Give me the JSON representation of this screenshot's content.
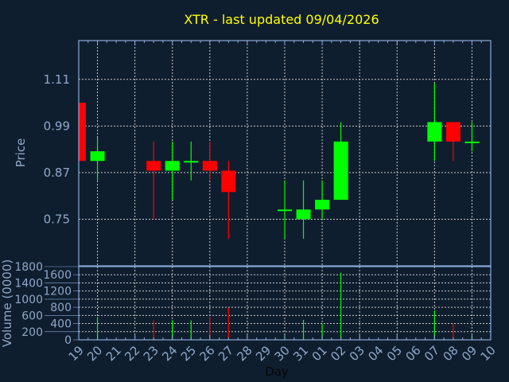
{
  "chart_data": {
    "type": "candlestick",
    "title": "XTR - last updated 09/04/2026",
    "xlabel": "Day",
    "price_panel": {
      "ylabel": "Price",
      "yticks": [
        1.11,
        0.99,
        0.87,
        0.75
      ],
      "ylim": [
        0.63,
        1.21
      ],
      "grid": true
    },
    "volume_panel": {
      "ylabel": "Volume (0000)",
      "yticks": [
        0,
        200,
        400,
        600,
        800,
        1000,
        1200,
        1400,
        1600,
        1800
      ],
      "ylim": [
        0,
        1800
      ],
      "grid": true
    },
    "x_tick_labels": [
      "19",
      "20",
      "21",
      "22",
      "23",
      "24",
      "25",
      "26",
      "27",
      "28",
      "29",
      "30",
      "31",
      "01",
      "02",
      "03",
      "04",
      "05",
      "06",
      "07",
      "08",
      "09",
      "10"
    ],
    "candles": [
      {
        "day": "19",
        "open": 1.05,
        "high": 1.05,
        "low": 0.9,
        "close": 0.9,
        "volume": null
      },
      {
        "day": "20",
        "open": 0.9,
        "high": 0.96,
        "low": 0.85,
        "close": 0.925,
        "volume": 560
      },
      {
        "day": "23",
        "open": 0.9,
        "high": 0.95,
        "low": 0.75,
        "close": 0.875,
        "volume": 480
      },
      {
        "day": "24",
        "open": 0.875,
        "high": 0.95,
        "low": 0.8,
        "close": 0.9,
        "volume": 480
      },
      {
        "day": "25",
        "open": 0.898,
        "high": 0.95,
        "low": 0.85,
        "close": 0.9,
        "volume": 480
      },
      {
        "day": "26",
        "open": 0.9,
        "high": 0.95,
        "low": 0.85,
        "close": 0.875,
        "volume": 560
      },
      {
        "day": "27",
        "open": 0.875,
        "high": 0.9,
        "low": 0.7,
        "close": 0.82,
        "volume": 790
      },
      {
        "day": "30",
        "open": 0.773,
        "high": 0.85,
        "low": 0.7,
        "close": 0.775,
        "volume": 100
      },
      {
        "day": "31",
        "open": 0.75,
        "high": 0.85,
        "low": 0.7,
        "close": 0.775,
        "volume": 490
      },
      {
        "day": "01",
        "open": 0.775,
        "high": 0.85,
        "low": 0.75,
        "close": 0.8,
        "volume": 400
      },
      {
        "day": "02",
        "open": 0.8,
        "high": 1.0,
        "low": 0.8,
        "close": 0.95,
        "volume": 1650
      },
      {
        "day": "07",
        "open": 0.95,
        "high": 1.1,
        "low": 0.9,
        "close": 1.0,
        "volume": 720
      },
      {
        "day": "08",
        "open": 1.0,
        "high": 1.0,
        "low": 0.9,
        "close": 0.95,
        "volume": 400
      },
      {
        "day": "09",
        "open": 0.948,
        "high": 1.0,
        "low": 0.925,
        "close": 0.95,
        "volume": 100
      }
    ],
    "colors": {
      "up": "#00ff00",
      "down": "#ff0000",
      "title": "#ffff00",
      "axis": "#8fa8c8",
      "background": "#0f1e2f"
    }
  }
}
